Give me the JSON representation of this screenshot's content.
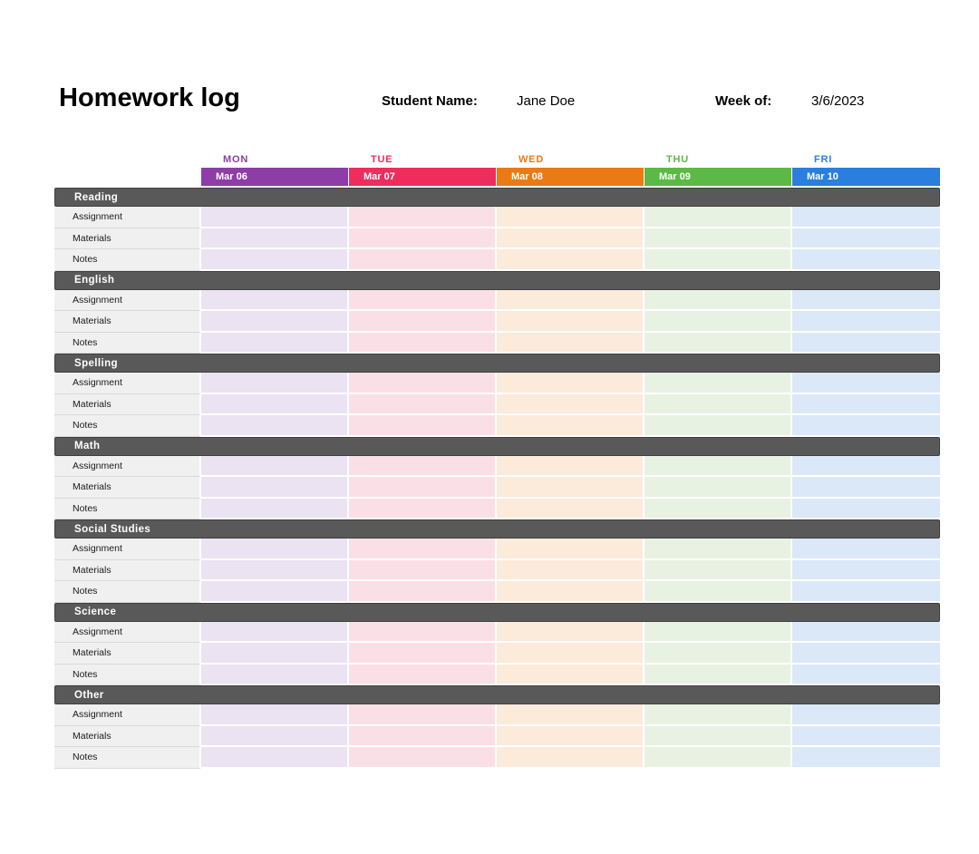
{
  "header": {
    "title": "Homework log",
    "student_name_label": "Student Name:",
    "student_name": "Jane Doe",
    "week_of_label": "Week of:",
    "week_of": "3/6/2023"
  },
  "week": {
    "days": [
      {
        "abbr": "MON",
        "date": "Mar 06",
        "color": "#8e3ca6",
        "tint": "#ebe3f1"
      },
      {
        "abbr": "TUE",
        "date": "Mar 07",
        "color": "#ee2d5d",
        "tint": "#fbdfe7"
      },
      {
        "abbr": "WED",
        "date": "Mar 08",
        "color": "#ea7a15",
        "tint": "#fceadb"
      },
      {
        "abbr": "THU",
        "date": "Mar 09",
        "color": "#5cb946",
        "tint": "#e8f2e2"
      },
      {
        "abbr": "FRI",
        "date": "Mar 10",
        "color": "#2a7ede",
        "tint": "#dbe8f8"
      }
    ]
  },
  "table": {
    "sections": [
      "Reading",
      "English",
      "Spelling",
      "Math",
      "Social Studies",
      "Science",
      "Other"
    ],
    "row_labels": [
      "Assignment",
      "Materials",
      "Notes"
    ],
    "section_header_bg": "#595959",
    "label_col_bg": "#f0f0f0"
  }
}
